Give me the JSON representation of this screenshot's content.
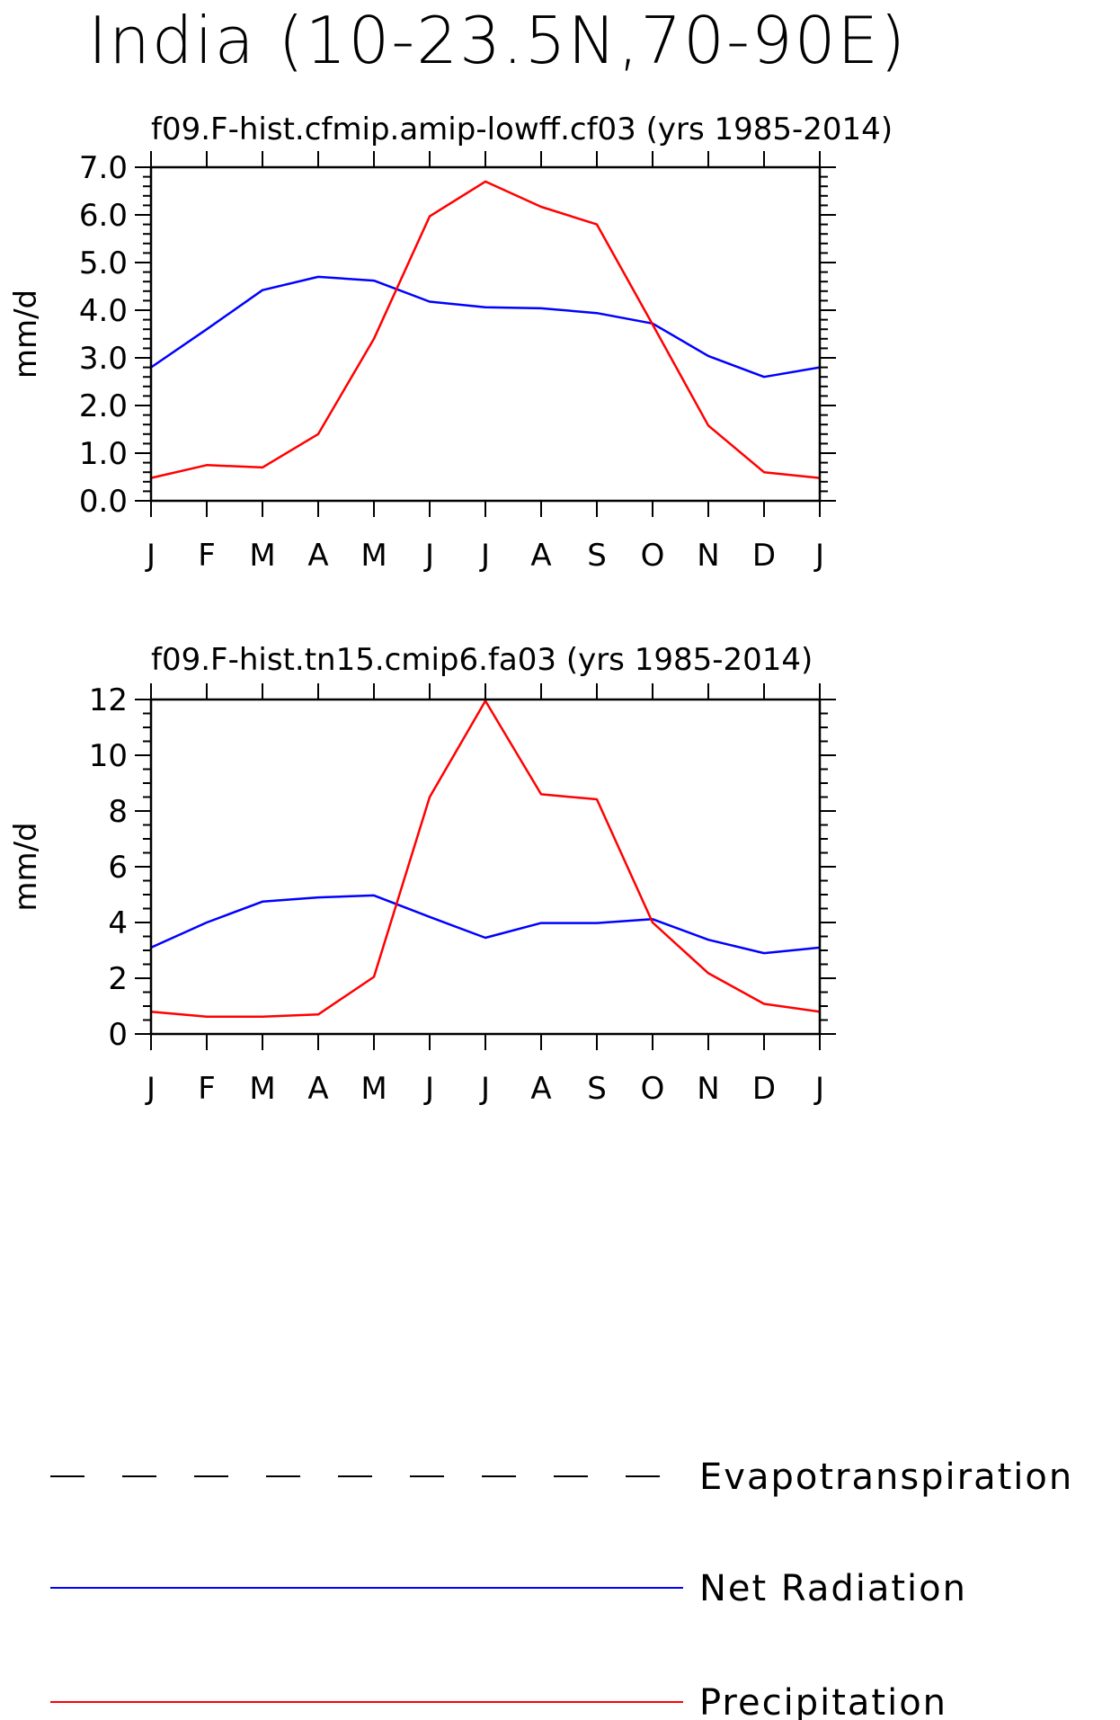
{
  "page_title": "India (10-23.5N,70-90E)",
  "colors": {
    "net_radiation": "#0000ff",
    "precipitation": "#ff0000",
    "axis": "#000000"
  },
  "legend": {
    "items": [
      {
        "label": "Evapotranspiration",
        "style": "dashed",
        "color": "#000000"
      },
      {
        "label": "Net Radiation",
        "style": "solid",
        "color": "#0000ff"
      },
      {
        "label": "Precipitation",
        "style": "solid",
        "color": "#ff0000"
      }
    ]
  },
  "chart_data": [
    {
      "type": "line",
      "title": "f09.F-hist.cfmip.amip-lowff.cf03 (yrs 1985-2014)",
      "ylabel": "mm/d",
      "xlabel": "",
      "categories": [
        "J",
        "F",
        "M",
        "A",
        "M",
        "J",
        "J",
        "A",
        "S",
        "O",
        "N",
        "D",
        "J"
      ],
      "ylim": [
        0,
        7
      ],
      "yticks": [
        "0.0",
        "1.0",
        "2.0",
        "3.0",
        "4.0",
        "5.0",
        "6.0",
        "7.0"
      ],
      "ytick_values": [
        0,
        1,
        2,
        3,
        4,
        5,
        6,
        7
      ],
      "series": [
        {
          "name": "Net Radiation",
          "color": "#0000ff",
          "values": [
            2.8,
            3.6,
            4.42,
            4.7,
            4.62,
            4.18,
            4.06,
            4.04,
            3.94,
            3.72,
            3.04,
            2.6,
            2.8
          ]
        },
        {
          "name": "Precipitation",
          "color": "#ff0000",
          "values": [
            0.48,
            0.75,
            0.7,
            1.4,
            3.4,
            5.97,
            6.7,
            6.17,
            5.8,
            3.7,
            1.58,
            0.6,
            0.48
          ]
        }
      ]
    },
    {
      "type": "line",
      "title": "f09.F-hist.tn15.cmip6.fa03 (yrs 1985-2014)",
      "ylabel": "mm/d",
      "xlabel": "",
      "categories": [
        "J",
        "F",
        "M",
        "A",
        "M",
        "J",
        "J",
        "A",
        "S",
        "O",
        "N",
        "D",
        "J"
      ],
      "ylim": [
        0,
        12
      ],
      "yticks": [
        "0",
        "2",
        "4",
        "6",
        "8",
        "10",
        "12"
      ],
      "ytick_values": [
        0,
        2,
        4,
        6,
        8,
        10,
        12
      ],
      "series": [
        {
          "name": "Net Radiation",
          "color": "#0000ff",
          "values": [
            3.1,
            4.0,
            4.75,
            4.9,
            4.97,
            4.2,
            3.45,
            3.98,
            3.98,
            4.12,
            3.38,
            2.9,
            3.1
          ]
        },
        {
          "name": "Precipitation",
          "color": "#ff0000",
          "values": [
            0.8,
            0.62,
            0.62,
            0.7,
            2.05,
            8.5,
            11.95,
            8.6,
            8.42,
            4.0,
            2.18,
            1.08,
            0.8
          ]
        }
      ]
    }
  ]
}
